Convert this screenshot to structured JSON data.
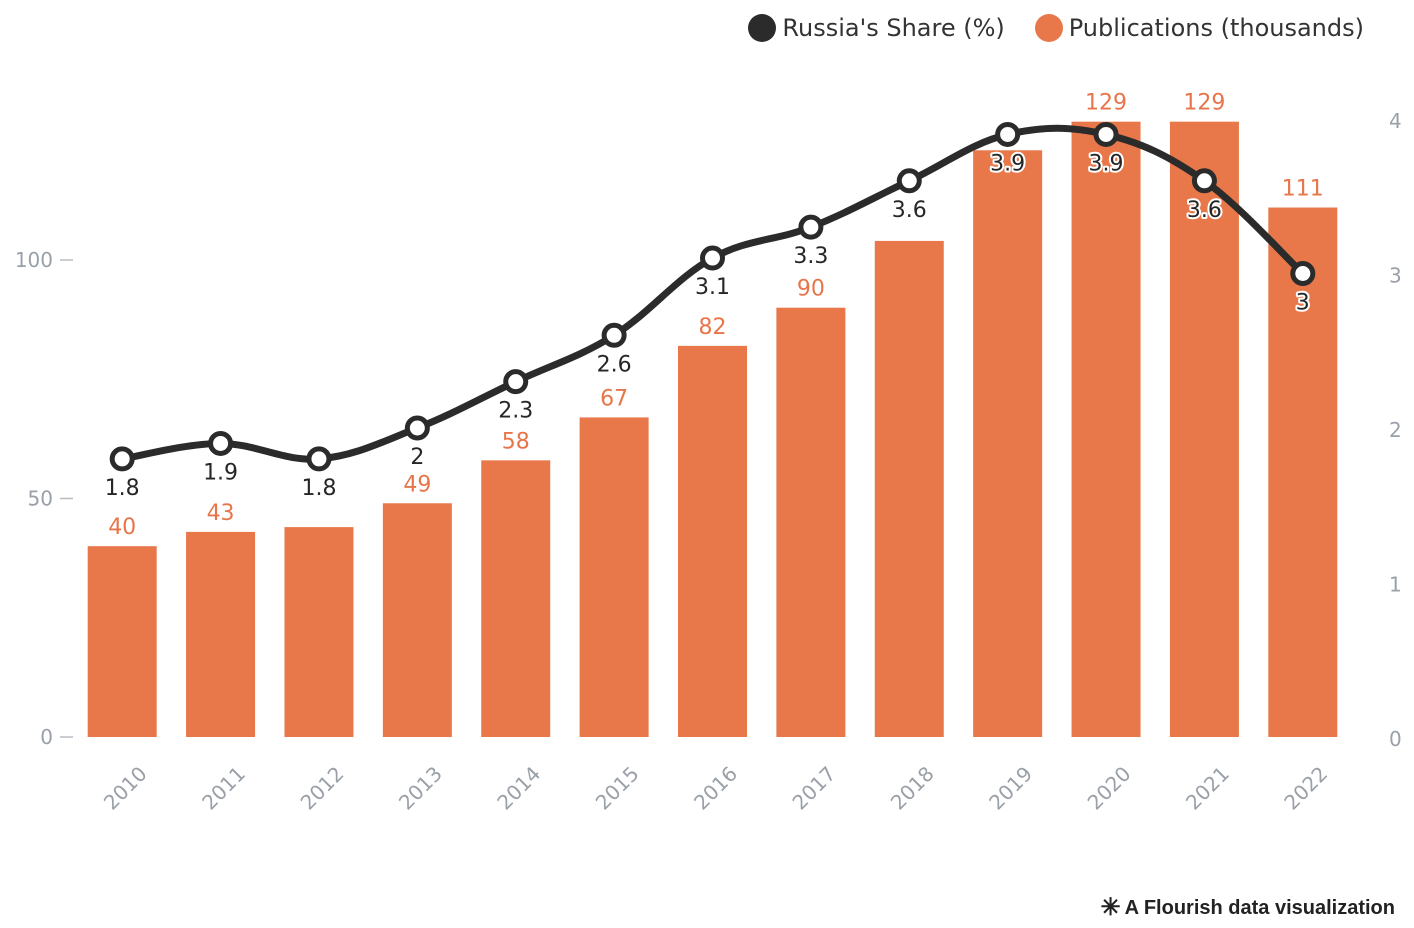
{
  "legend": {
    "share_label": "Russia's Share (%)",
    "publications_label": "Publications (thousands)"
  },
  "credit": {
    "icon": "asterisk-icon",
    "text": "A Flourish data visualization"
  },
  "chart_data": {
    "type": "bar",
    "categories": [
      "2010",
      "2011",
      "2012",
      "2013",
      "2014",
      "2015",
      "2016",
      "2017",
      "2018",
      "2019",
      "2020",
      "2021",
      "2022"
    ],
    "series": [
      {
        "name": "Publications (thousands)",
        "type": "bar",
        "axis": "left",
        "color": "#e8784a",
        "values": [
          40,
          43,
          44,
          49,
          58,
          67,
          82,
          90,
          104,
          123,
          129,
          129,
          111
        ],
        "labels": [
          "40",
          "43",
          "",
          "49",
          "58",
          "67",
          "82",
          "90",
          "",
          "",
          "129",
          "129",
          "111"
        ]
      },
      {
        "name": "Russia's Share (%)",
        "type": "line",
        "axis": "right",
        "color": "#2b2b2b",
        "values": [
          1.8,
          1.9,
          1.8,
          2,
          2.3,
          2.6,
          3.1,
          3.3,
          3.6,
          3.9,
          3.9,
          3.6,
          3
        ],
        "labels": [
          "1.8",
          "1.9",
          "1.8",
          "2",
          "2.3",
          "2.6",
          "3.1",
          "3.3",
          "3.6",
          "3.9",
          "3.9",
          "3.6",
          "3"
        ]
      }
    ],
    "y_left": {
      "ticks": [
        "0",
        "50",
        "100"
      ],
      "range": [
        0,
        130
      ]
    },
    "y_right": {
      "ticks": [
        "0",
        "1",
        "2",
        "3",
        "4"
      ],
      "range": [
        0,
        4
      ]
    },
    "legend_position": "top-right",
    "grid": false
  }
}
